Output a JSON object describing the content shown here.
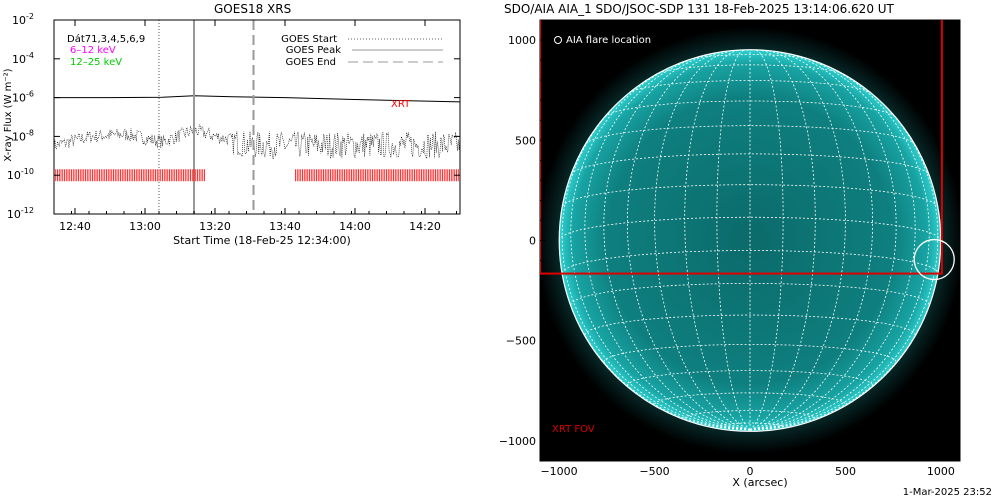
{
  "goes_panel": {
    "title": "GOES18 XRS",
    "xlabel": "Start Time (18-Feb-25 12:34:00)",
    "ylabel": "X-ray Flux (W m⁻²)",
    "channels_label": "Dát71,3,4,5,6,9",
    "band_low": "6–12 keV",
    "band_high": "12–25 keV",
    "legend": {
      "start": "GOES Start",
      "peak": "GOES Peak",
      "end": "GOES End"
    },
    "xrt_label": "XRT",
    "colors": {
      "band_low": "#ff00ff",
      "band_high": "#00cc00",
      "xrt": "#ff0000",
      "peak_line": "#999999"
    }
  },
  "aia_panel": {
    "title": "SDO/AIA AIA_1 SDO/JSOC-SDP 131 18-Feb-2025 13:14:06.620 UT",
    "legend_label": "AIA flare location",
    "xrt_fov_label": "XRT FOV",
    "xlabel": "X (arcsec)",
    "colors": {
      "disk": "#0f8f8f",
      "fov": "#dd0000",
      "grid": "#ffffff"
    }
  },
  "footer": {
    "timestamp": "1-Mar-2025 23:52"
  },
  "chart_data": [
    {
      "type": "line",
      "title": "GOES18 XRS",
      "xlabel": "Start Time (18-Feb-25 12:34:00)",
      "ylabel": "X-ray Flux (W m^-2)",
      "y_scale": "log",
      "ylim": [
        1e-12,
        0.01
      ],
      "xlim": [
        "12:34",
        "14:30"
      ],
      "x_ticks": [
        "12:40",
        "13:00",
        "13:20",
        "13:40",
        "14:00",
        "14:20"
      ],
      "y_ticks": [
        "10^-12",
        "10^-10",
        "10^-8",
        "10^-6",
        "10^-4",
        "10^-2"
      ],
      "series": [
        {
          "name": "6–12 keV",
          "x": [
            "12:34",
            "12:50",
            "13:05",
            "13:14",
            "13:25",
            "13:40",
            "14:00",
            "14:30"
          ],
          "y": [
            1e-06,
            1e-06,
            1.05e-06,
            1.25e-06,
            1.1e-06,
            1e-06,
            8e-07,
            6e-07
          ]
        },
        {
          "name": "12–25 keV",
          "x": [
            "12:34",
            "12:45",
            "12:55",
            "13:05",
            "13:14",
            "13:20",
            "13:30",
            "14:00",
            "14:30"
          ],
          "y": [
            4e-09,
            1.2e-08,
            1.5e-08,
            6e-09,
            2.5e-08,
            1.2e-08,
            5e-09,
            5e-09,
            5e-09
          ]
        }
      ],
      "markers": {
        "goes_start": "13:04",
        "goes_peak": "13:14",
        "goes_end": "13:31"
      },
      "xrt_coverage": [
        [
          "12:34",
          "13:17"
        ],
        [
          "13:43",
          "14:30"
        ]
      ]
    },
    {
      "type": "scatter",
      "title": "SDO/AIA AIA_1 SDO/JSOC-SDP 131 18-Feb-2025 13:14:06.620 UT",
      "xlabel": "X (arcsec)",
      "xlim": [
        -1100,
        1100
      ],
      "ylim": [
        -1100,
        1100
      ],
      "x_ticks": [
        -1000,
        -500,
        0,
        500,
        1000
      ],
      "y_ticks": [
        -1000,
        -500,
        0,
        500,
        1000
      ],
      "solar_radius_arcsec": 975,
      "flare_location_arcsec": [
        965,
        -95
      ],
      "xrt_fov_arcsec": {
        "x": [
          -1100,
          1005
        ],
        "y": [
          -165,
          1110
        ]
      }
    }
  ]
}
